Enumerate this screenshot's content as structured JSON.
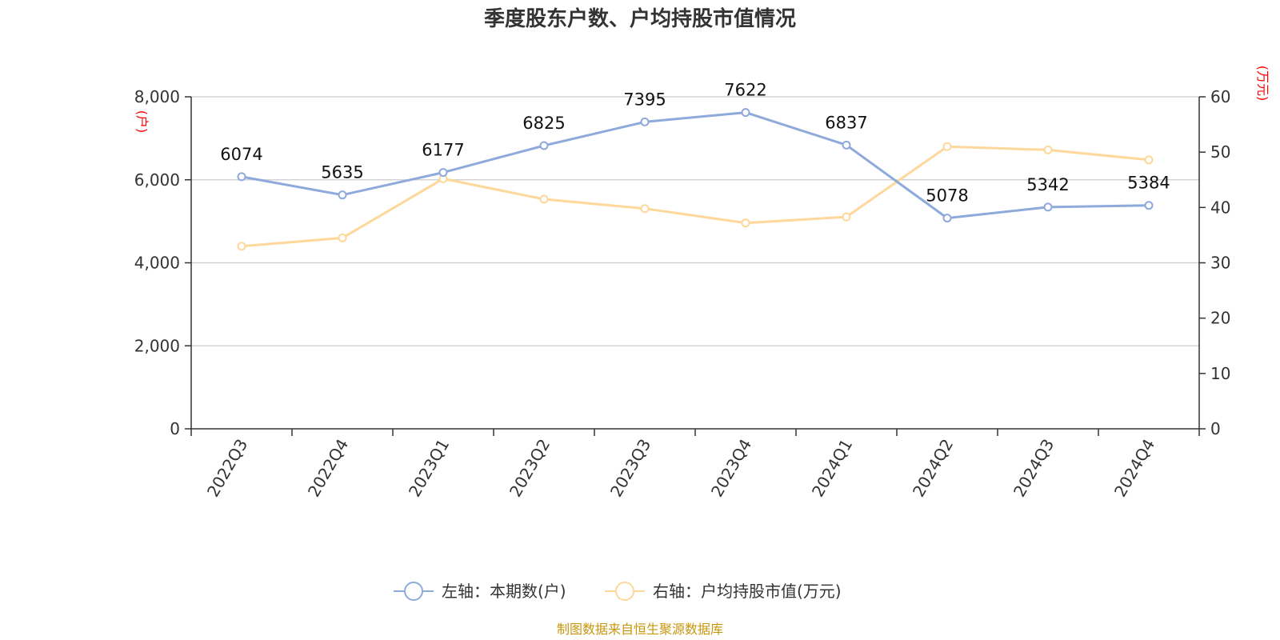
{
  "chart_data": {
    "type": "line",
    "title": "季度股东户数、户均持股市值情况",
    "categories": [
      "2022Q3",
      "2022Q4",
      "2023Q1",
      "2023Q2",
      "2023Q3",
      "2023Q4",
      "2024Q1",
      "2024Q2",
      "2024Q3",
      "2024Q4"
    ],
    "left_axis": {
      "unit": "(户)",
      "range": [
        0,
        8000
      ],
      "ticks": [
        "0",
        "2,000",
        "4,000",
        "6,000",
        "8,000"
      ],
      "tick_values": [
        0,
        2000,
        4000,
        6000,
        8000
      ]
    },
    "right_axis": {
      "unit": "(万元)",
      "range": [
        0,
        60
      ],
      "ticks": [
        "0",
        "10",
        "20",
        "30",
        "40",
        "50",
        "60"
      ],
      "tick_values": [
        0,
        10,
        20,
        30,
        40,
        50,
        60
      ]
    },
    "series": [
      {
        "name": "左轴：本期数(户)",
        "axis": "left",
        "color": "#8eaadb",
        "values": [
          6074,
          5635,
          6177,
          6825,
          7395,
          7622,
          6837,
          5078,
          5342,
          5384
        ],
        "labels": [
          "6074",
          "5635",
          "6177",
          "6825",
          "7395",
          "7622",
          "6837",
          "5078",
          "5342",
          "5384"
        ]
      },
      {
        "name": "右轴：户均持股市值(万元)",
        "axis": "right",
        "color": "#fdd89a",
        "values": [
          33.0,
          34.5,
          45.2,
          41.5,
          39.8,
          37.2,
          38.3,
          51.0,
          50.4,
          48.6
        ]
      }
    ],
    "grid": true,
    "legend_position": "bottom"
  },
  "axis_unit_color": "#ff0000",
  "source": {
    "text": "制图数据来自恒生聚源数据库",
    "color": "#c8960c"
  }
}
